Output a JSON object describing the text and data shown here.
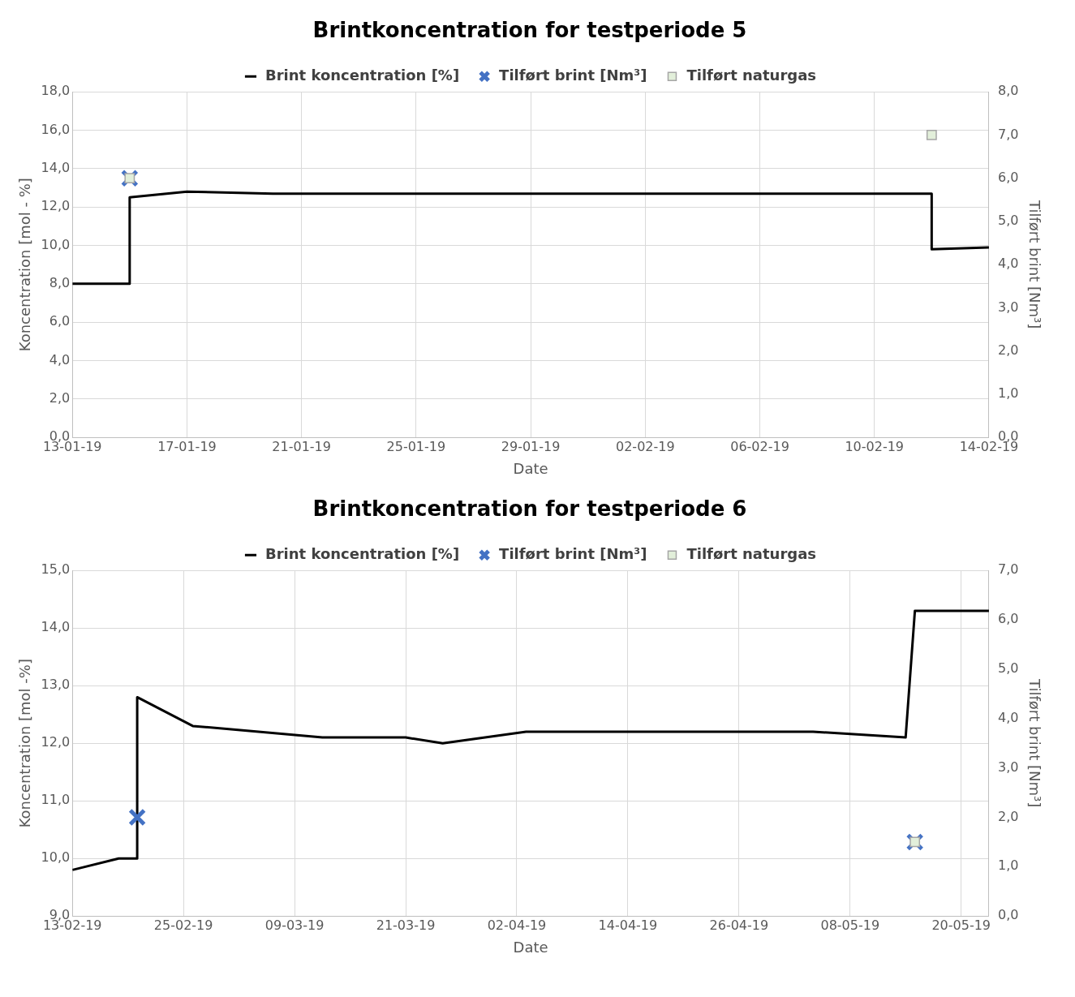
{
  "chart_data": [
    {
      "type": "line",
      "title": "Brintkoncentration for testperiode 5",
      "xlabel": "Date",
      "ylabel": "Koncentration [mol - %]",
      "y2label": "Tilført brint [Nm³]",
      "legend": "top",
      "grid": true,
      "xlim": [
        "--01-13",
        "--02-14"
      ],
      "xticks": [
        {
          "value": "--01-13",
          "label": "13-01-19"
        },
        {
          "value": "--01-17",
          "label": "17-01-19"
        },
        {
          "value": "--01-21",
          "label": "21-01-19"
        },
        {
          "value": "--01-25",
          "label": "25-01-19"
        },
        {
          "value": "--01-29",
          "label": "29-01-19"
        },
        {
          "value": "--02-02",
          "label": "02-02-19"
        },
        {
          "value": "--02-06",
          "label": "06-02-19"
        },
        {
          "value": "--02-10",
          "label": "10-02-19"
        },
        {
          "value": "--02-14",
          "label": "14-02-19"
        }
      ],
      "ylim": [
        0,
        18
      ],
      "yticks": [
        {
          "value": 0,
          "label": "0,0"
        },
        {
          "value": 2,
          "label": "2,0"
        },
        {
          "value": 4,
          "label": "4,0"
        },
        {
          "value": 6,
          "label": "6,0"
        },
        {
          "value": 8,
          "label": "8,0"
        },
        {
          "value": 10,
          "label": "10,0"
        },
        {
          "value": 12,
          "label": "12,0"
        },
        {
          "value": 14,
          "label": "14,0"
        },
        {
          "value": 16,
          "label": "16,0"
        },
        {
          "value": 18,
          "label": "18,0"
        }
      ],
      "y2lim": [
        0,
        8
      ],
      "y2ticks": [
        {
          "value": 0,
          "label": "0,0"
        },
        {
          "value": 1,
          "label": "1,0"
        },
        {
          "value": 2,
          "label": "2,0"
        },
        {
          "value": 3,
          "label": "3,0"
        },
        {
          "value": 4,
          "label": "4,0"
        },
        {
          "value": 5,
          "label": "5,0"
        },
        {
          "value": 6,
          "label": "6,0"
        },
        {
          "value": 7,
          "label": "7,0"
        },
        {
          "value": 8,
          "label": "8,0"
        }
      ],
      "series": [
        {
          "name": "Brint koncentration [%]",
          "marker": "none",
          "color": "#000000",
          "x": [
            "--01-13",
            "--01-15",
            "--01-15",
            "--01-17",
            "--01-20",
            "--02-12",
            "--02-12",
            "--02-14"
          ],
          "values": [
            8.0,
            8.0,
            12.5,
            12.8,
            12.7,
            12.7,
            9.8,
            9.9
          ]
        },
        {
          "name": "Tilført brint [Nm³]",
          "type": "scatter",
          "marker": "cross",
          "axis": "y2",
          "color": "#4472c4",
          "x": [
            "--01-15"
          ],
          "values": [
            6.0
          ]
        },
        {
          "name": "Tilført naturgas",
          "type": "scatter",
          "marker": "square",
          "axis": "y2",
          "color": "#e2efda",
          "x": [
            "--01-15",
            "--02-12"
          ],
          "values": [
            6.0,
            7.0
          ]
        }
      ]
    },
    {
      "type": "line",
      "title": "Brintkoncentration for testperiode 6",
      "xlabel": "Date",
      "ylabel": "Koncentration [mol -%]",
      "y2label": "Tilført brint [Nm³]",
      "legend": "top",
      "grid": true,
      "xlim": [
        "--02-13",
        "--05-23"
      ],
      "xticks": [
        {
          "value": "--02-13",
          "label": "13-02-19"
        },
        {
          "value": "--02-25",
          "label": "25-02-19"
        },
        {
          "value": "--03-09",
          "label": "09-03-19"
        },
        {
          "value": "--03-21",
          "label": "21-03-19"
        },
        {
          "value": "--04-02",
          "label": "02-04-19"
        },
        {
          "value": "--04-14",
          "label": "14-04-19"
        },
        {
          "value": "--04-26",
          "label": "26-04-19"
        },
        {
          "value": "--05-08",
          "label": "08-05-19"
        },
        {
          "value": "--05-20",
          "label": "20-05-19"
        }
      ],
      "ylim": [
        9,
        15
      ],
      "yticks": [
        {
          "value": 9,
          "label": "9,0"
        },
        {
          "value": 10,
          "label": "10,0"
        },
        {
          "value": 11,
          "label": "11,0"
        },
        {
          "value": 12,
          "label": "12,0"
        },
        {
          "value": 13,
          "label": "13,0"
        },
        {
          "value": 14,
          "label": "14,0"
        },
        {
          "value": 15,
          "label": "15,0"
        }
      ],
      "y2lim": [
        0,
        7
      ],
      "y2ticks": [
        {
          "value": 0,
          "label": "0,0"
        },
        {
          "value": 1,
          "label": "1,0"
        },
        {
          "value": 2,
          "label": "2,0"
        },
        {
          "value": 3,
          "label": "3,0"
        },
        {
          "value": 4,
          "label": "4,0"
        },
        {
          "value": 5,
          "label": "5,0"
        },
        {
          "value": 6,
          "label": "6,0"
        },
        {
          "value": 7,
          "label": "7,0"
        }
      ],
      "series": [
        {
          "name": "Brint koncentration [%]",
          "marker": "none",
          "color": "#000000",
          "x": [
            "--02-13",
            "--02-18",
            "--02-20",
            "--02-20",
            "--02-26",
            "--03-12",
            "--03-21",
            "--03-25",
            "--04-03",
            "--05-04",
            "--05-14",
            "--05-15",
            "--05-23"
          ],
          "values": [
            9.8,
            10.0,
            10.0,
            12.8,
            12.3,
            12.1,
            12.1,
            12.0,
            12.2,
            12.2,
            12.1,
            14.3,
            14.3
          ]
        },
        {
          "name": "Tilført brint [Nm³]",
          "type": "scatter",
          "marker": "cross",
          "axis": "y2",
          "color": "#4472c4",
          "x": [
            "--02-20",
            "--05-15"
          ],
          "values": [
            2.0,
            1.5
          ]
        },
        {
          "name": "Tilført naturgas",
          "type": "scatter",
          "marker": "square",
          "axis": "y2",
          "color": "#e2efda",
          "x": [
            "--05-15"
          ],
          "values": [
            1.5
          ]
        }
      ]
    }
  ]
}
